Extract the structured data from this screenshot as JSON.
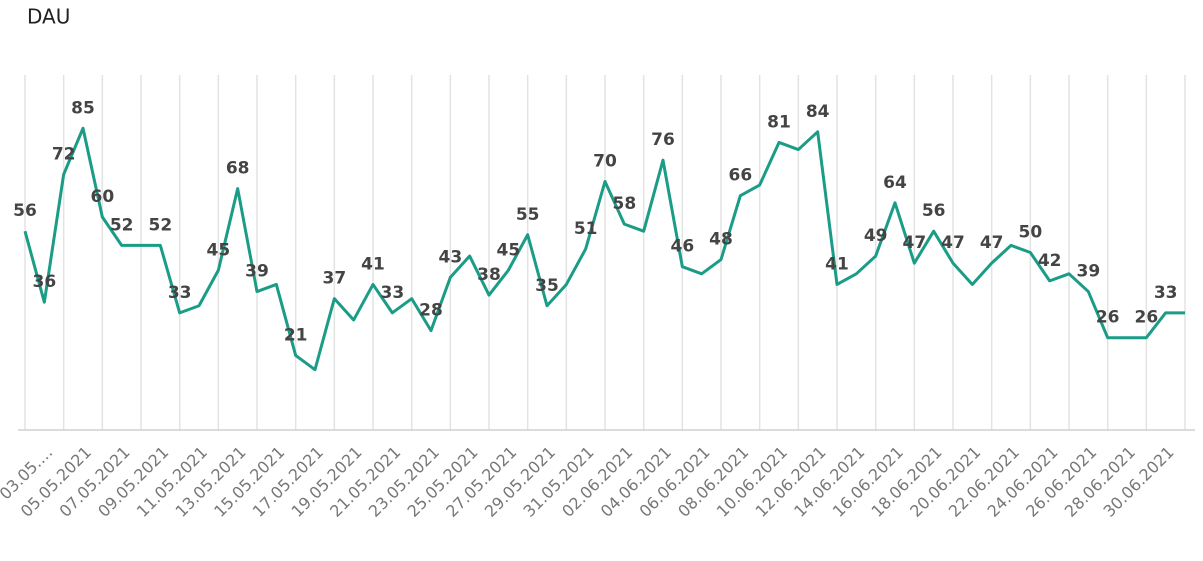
{
  "chart_data": {
    "type": "line",
    "title": "DAU",
    "categories": [
      null,
      "03.05.…",
      null,
      "05.05.2021",
      null,
      "07.05.2021",
      null,
      "09.05.2021",
      null,
      "11.05.2021",
      null,
      "13.05.2021",
      null,
      "15.05.2021",
      null,
      "17.05.2021",
      null,
      "19.05.2021",
      null,
      "21.05.2021",
      null,
      "23.05.2021",
      null,
      "25.05.2021",
      null,
      "27.05.2021",
      null,
      "29.05.2021",
      null,
      "31.05.2021",
      null,
      "02.06.2021",
      null,
      "04.06.2021",
      null,
      "06.06.2021",
      null,
      "08.06.2021",
      null,
      "10.06.2021",
      null,
      "12.06.2021",
      null,
      "14.06.2021",
      null,
      "16.06.2021",
      null,
      "18.06.2021",
      null,
      "20.06.2021",
      null,
      "22.06.2021",
      null,
      "24.06.2021",
      null,
      "26.06.2021",
      null,
      "28.06.2021",
      null,
      "30.06.2021",
      null
    ],
    "series": [
      {
        "name": "DAU",
        "color": "#1a9c87",
        "values": [
          56,
          36,
          72,
          85,
          60,
          52,
          52,
          52,
          33,
          35,
          45,
          68,
          39,
          41,
          21,
          17,
          37,
          31,
          41,
          33,
          37,
          28,
          43,
          49,
          38,
          45,
          55,
          35,
          41,
          51,
          70,
          58,
          56,
          76,
          46,
          44,
          48,
          66,
          69,
          81,
          79,
          84,
          41,
          44,
          49,
          64,
          47,
          56,
          47,
          41,
          47,
          52,
          50,
          42,
          44,
          39,
          26,
          26,
          26,
          33,
          33
        ],
        "value_labels": [
          "56",
          "36",
          "72",
          "85",
          "60",
          "52",
          null,
          "52",
          "33",
          null,
          "45",
          "68",
          "39",
          null,
          "21",
          null,
          "37",
          null,
          "41",
          "33",
          null,
          "28",
          "43",
          null,
          "38",
          "45",
          "55",
          "35",
          null,
          "51",
          "70",
          "58",
          null,
          "76",
          "46",
          null,
          "48",
          "66",
          null,
          "81",
          null,
          "84",
          "41",
          null,
          "49",
          "64",
          "47",
          "56",
          "47",
          null,
          "47",
          null,
          "50",
          "42",
          null,
          "39",
          "26",
          null,
          "26",
          "33",
          null
        ]
      }
    ],
    "ylim": [
      0,
      100
    ],
    "grid": true,
    "legend": false
  }
}
